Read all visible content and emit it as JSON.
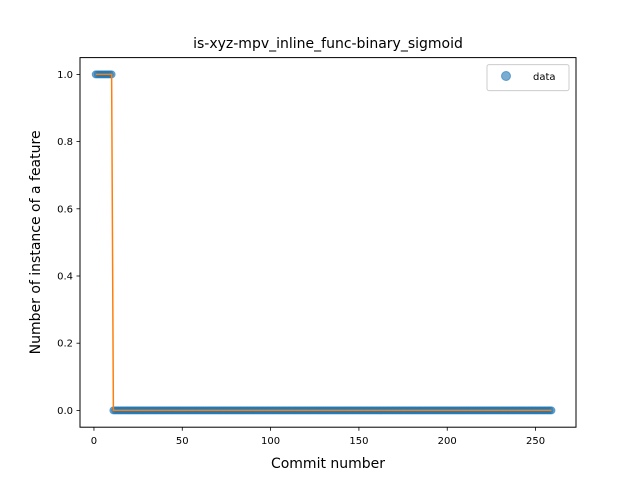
{
  "chart_data": {
    "type": "scatter",
    "title": "is-xyz-mpv_inline_func-binary_sigmoid",
    "xlabel": "Commit number",
    "ylabel": "Number of instance of a feature",
    "xlim": [
      -7.9,
      272.9
    ],
    "ylim": [
      -0.05,
      1.05
    ],
    "xticks": [
      0,
      50,
      100,
      150,
      200,
      250
    ],
    "yticks": [
      0.0,
      0.2,
      0.4,
      0.6,
      0.8,
      1.0
    ],
    "xtick_labels": [
      "0",
      "50",
      "100",
      "150",
      "200",
      "250"
    ],
    "ytick_labels": [
      "0.0",
      "0.2",
      "0.4",
      "0.6",
      "0.8",
      "1.0"
    ],
    "legend": {
      "label": "data",
      "placement": "top-right"
    },
    "grid": false,
    "series": [
      {
        "name": "data",
        "kind": "scatter",
        "color": "#1f77b4",
        "segments": [
          {
            "x_start": 1,
            "x_end": 10,
            "y": 1.0
          },
          {
            "x_start": 11,
            "x_end": 259,
            "y": 0.0
          }
        ]
      },
      {
        "name": "fit",
        "kind": "line",
        "color": "#ff7f0e",
        "points": [
          [
            1,
            1.0
          ],
          [
            10,
            1.0
          ],
          [
            11,
            0.0
          ],
          [
            259,
            0.0
          ]
        ]
      }
    ]
  }
}
